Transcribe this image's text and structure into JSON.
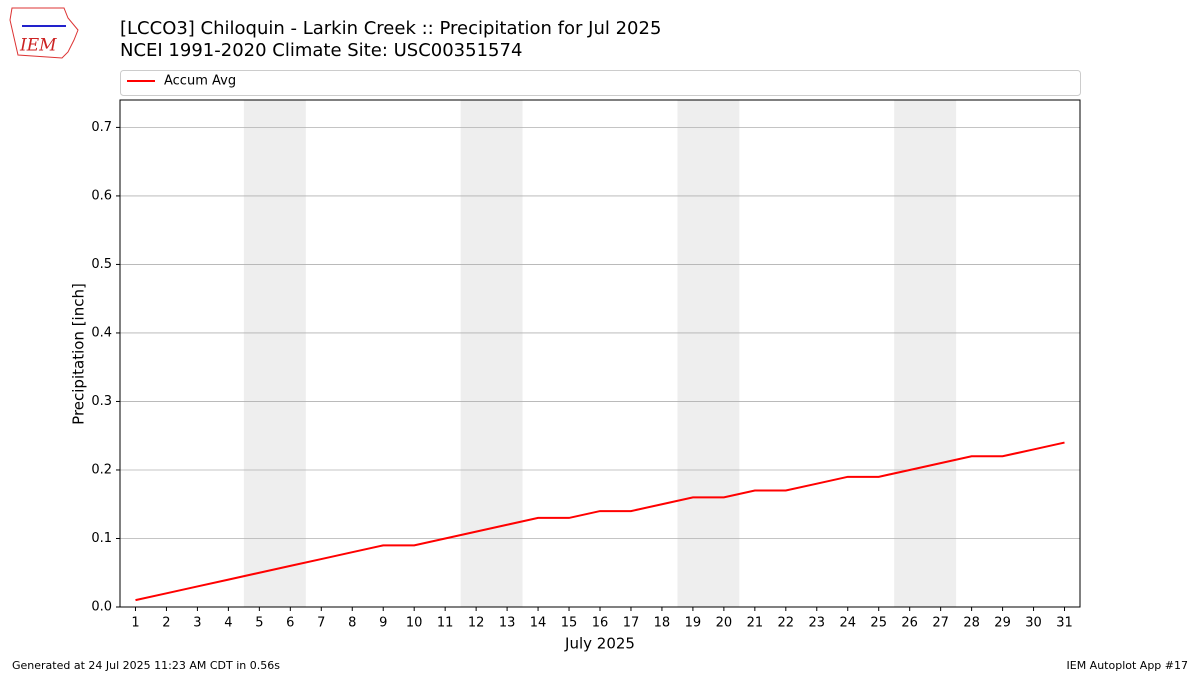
{
  "logo_text": "IEM",
  "chart_data": {
    "type": "line",
    "title": "[LCCO3] Chiloquin - Larkin Creek :: Precipitation for Jul 2025",
    "subtitle": "NCEI 1991-2020 Climate Site: USC00351574",
    "xlabel": "July 2025",
    "ylabel": "Precipitation [inch]",
    "x": [
      1,
      2,
      3,
      4,
      5,
      6,
      7,
      8,
      9,
      10,
      11,
      12,
      13,
      14,
      15,
      16,
      17,
      18,
      19,
      20,
      21,
      22,
      23,
      24,
      25,
      26,
      27,
      28,
      29,
      30,
      31
    ],
    "series": [
      {
        "name": "Accum Avg",
        "color": "#ff0000",
        "values": [
          0.01,
          0.02,
          0.03,
          0.04,
          0.05,
          0.06,
          0.07,
          0.08,
          0.09,
          0.09,
          0.1,
          0.11,
          0.12,
          0.13,
          0.13,
          0.14,
          0.14,
          0.15,
          0.16,
          0.16,
          0.17,
          0.17,
          0.18,
          0.19,
          0.19,
          0.2,
          0.21,
          0.22,
          0.22,
          0.23,
          0.24
        ]
      }
    ],
    "weekend_spans": [
      [
        4.5,
        6.5
      ],
      [
        11.5,
        13.5
      ],
      [
        18.5,
        20.5
      ],
      [
        25.5,
        27.5
      ]
    ],
    "xlim": [
      0.5,
      31.5
    ],
    "ylim": [
      0,
      0.74
    ],
    "xticks": [
      1,
      2,
      3,
      4,
      5,
      6,
      7,
      8,
      9,
      10,
      11,
      12,
      13,
      14,
      15,
      16,
      17,
      18,
      19,
      20,
      21,
      22,
      23,
      24,
      25,
      26,
      27,
      28,
      29,
      30,
      31
    ],
    "yticks": [
      {
        "value": 0,
        "label": "0.0"
      },
      0.1,
      0.2,
      0.3,
      0.4,
      0.5,
      0.6,
      0.7
    ],
    "grid": true,
    "legend": "top",
    "footer_left": "Generated at 24 Jul 2025 11:23 AM CDT in 0.56s",
    "footer_right": "IEM Autoplot App #17"
  }
}
